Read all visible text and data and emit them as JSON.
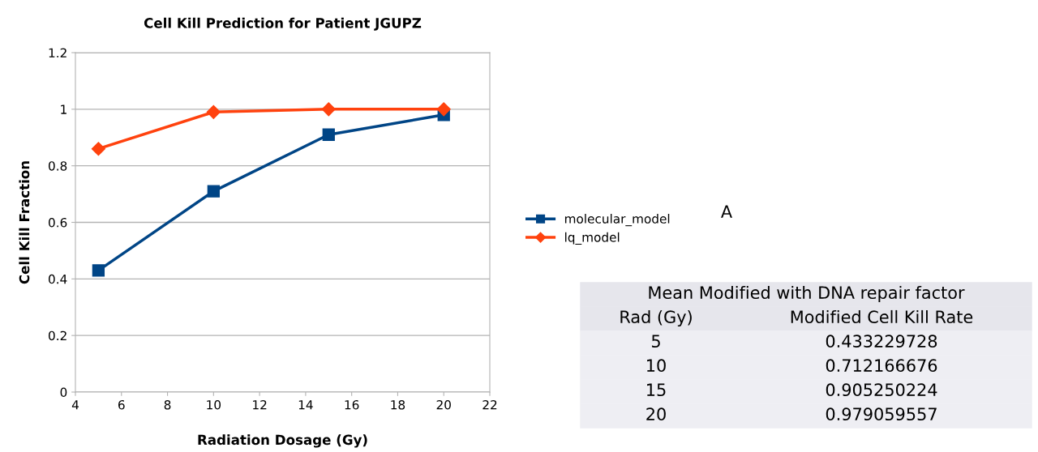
{
  "chart_data": {
    "type": "line",
    "title": "Cell Kill Prediction for Patient JGUPZ",
    "xlabel": "Radiation Dosage (Gy)",
    "ylabel": "Cell Kill Fraction",
    "x": [
      5,
      10,
      15,
      20
    ],
    "series": [
      {
        "name": "molecular_model",
        "color": "#004586",
        "marker": "square",
        "values": [
          0.43,
          0.71,
          0.91,
          0.98
        ]
      },
      {
        "name": "lq_model",
        "color": "#ff420e",
        "marker": "diamond",
        "values": [
          0.86,
          0.99,
          1.0,
          1.0
        ]
      }
    ],
    "xlim": [
      4,
      22
    ],
    "xticks": [
      4,
      6,
      8,
      10,
      12,
      14,
      16,
      18,
      20,
      22
    ],
    "ylim": [
      0,
      1.2
    ],
    "yticks": [
      0,
      0.2,
      0.4,
      0.6,
      0.8,
      1,
      1.2
    ],
    "grid": "y",
    "legend": "right",
    "line_style": "solid",
    "annotations": [
      "A",
      "Mean Modified with DNA repair factor",
      "Rad (Gy)",
      "Modified Cell Kill Rate",
      "5",
      "0.433229728",
      "10",
      "0.712166676",
      "15",
      "0.905250224",
      "20",
      "0.979059557"
    ]
  }
}
